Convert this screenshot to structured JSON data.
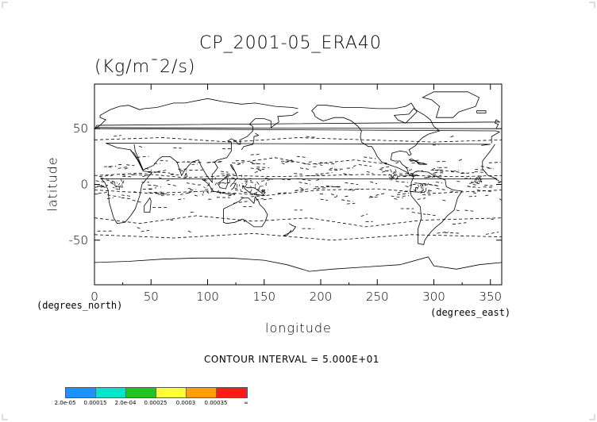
{
  "chart_data": {
    "type": "contour",
    "title": "CP_2001-05_ERA40",
    "units": "(Kg/m¯2/s)",
    "xlabel": "longitude",
    "ylabel": "latitude",
    "xunit": "(degrees_east)",
    "yunit": "(degrees_north)",
    "xlim": [
      0,
      360
    ],
    "ylim": [
      -90,
      90
    ],
    "xticks": [
      0,
      50,
      100,
      150,
      200,
      250,
      300,
      350
    ],
    "yticks": [
      -50,
      0,
      50
    ],
    "contour_interval_label": "CONTOUR INTERVAL = 5.000E+01",
    "colorbar": {
      "colors": [
        "#1e90ff",
        "#00e5cc",
        "#22c322",
        "#ffff33",
        "#ffa000",
        "#ff1a1a"
      ],
      "labels": [
        "2.0e-05",
        "0.00015",
        "2.0e-04",
        "0.00025",
        "0.0003",
        "0.00035",
        "∞"
      ]
    }
  }
}
